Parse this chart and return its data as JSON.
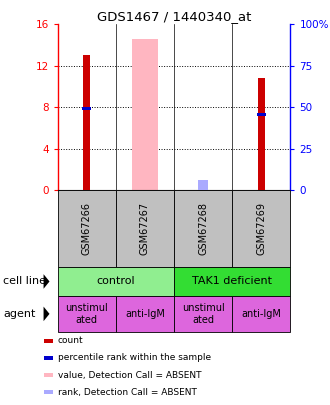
{
  "title": "GDS1467 / 1440340_at",
  "samples": [
    "GSM67266",
    "GSM67267",
    "GSM67268",
    "GSM67269"
  ],
  "ylim_left": [
    0,
    16
  ],
  "ylim_right": [
    0,
    100
  ],
  "yticks_left": [
    0,
    4,
    8,
    12,
    16
  ],
  "yticks_right": [
    0,
    25,
    50,
    75,
    100
  ],
  "ytick_labels_left": [
    "0",
    "4",
    "8",
    "12",
    "16"
  ],
  "ytick_labels_right": [
    "0",
    "25",
    "50",
    "75",
    "100%"
  ],
  "red_bars": [
    13.0,
    null,
    null,
    10.8
  ],
  "blue_markers": [
    7.9,
    null,
    null,
    7.3
  ],
  "pink_bars": [
    null,
    14.6,
    null,
    null
  ],
  "lightblue_bars": [
    null,
    null,
    1.0,
    null
  ],
  "pink_bar_color": "#FFB6C1",
  "red_bar_color": "#CC0000",
  "blue_marker_color": "#0000CC",
  "lightblue_bar_color": "#AAAAFF",
  "agent_row": [
    "unstimul\nated",
    "anti-IgM",
    "unstimul\nated",
    "anti-IgM"
  ],
  "cell_line_bg_control": "#90EE90",
  "cell_line_bg_tak1": "#33DD33",
  "agent_bg_unstim": "#DD66DD",
  "agent_bg_antilgm": "#DD66DD",
  "sample_bg": "#C0C0C0",
  "legend_items": [
    {
      "color": "#CC0000",
      "label": "count"
    },
    {
      "color": "#0000CC",
      "label": "percentile rank within the sample"
    },
    {
      "color": "#FFB6C1",
      "label": "value, Detection Call = ABSENT"
    },
    {
      "color": "#AAAAFF",
      "label": "rank, Detection Call = ABSENT"
    }
  ]
}
